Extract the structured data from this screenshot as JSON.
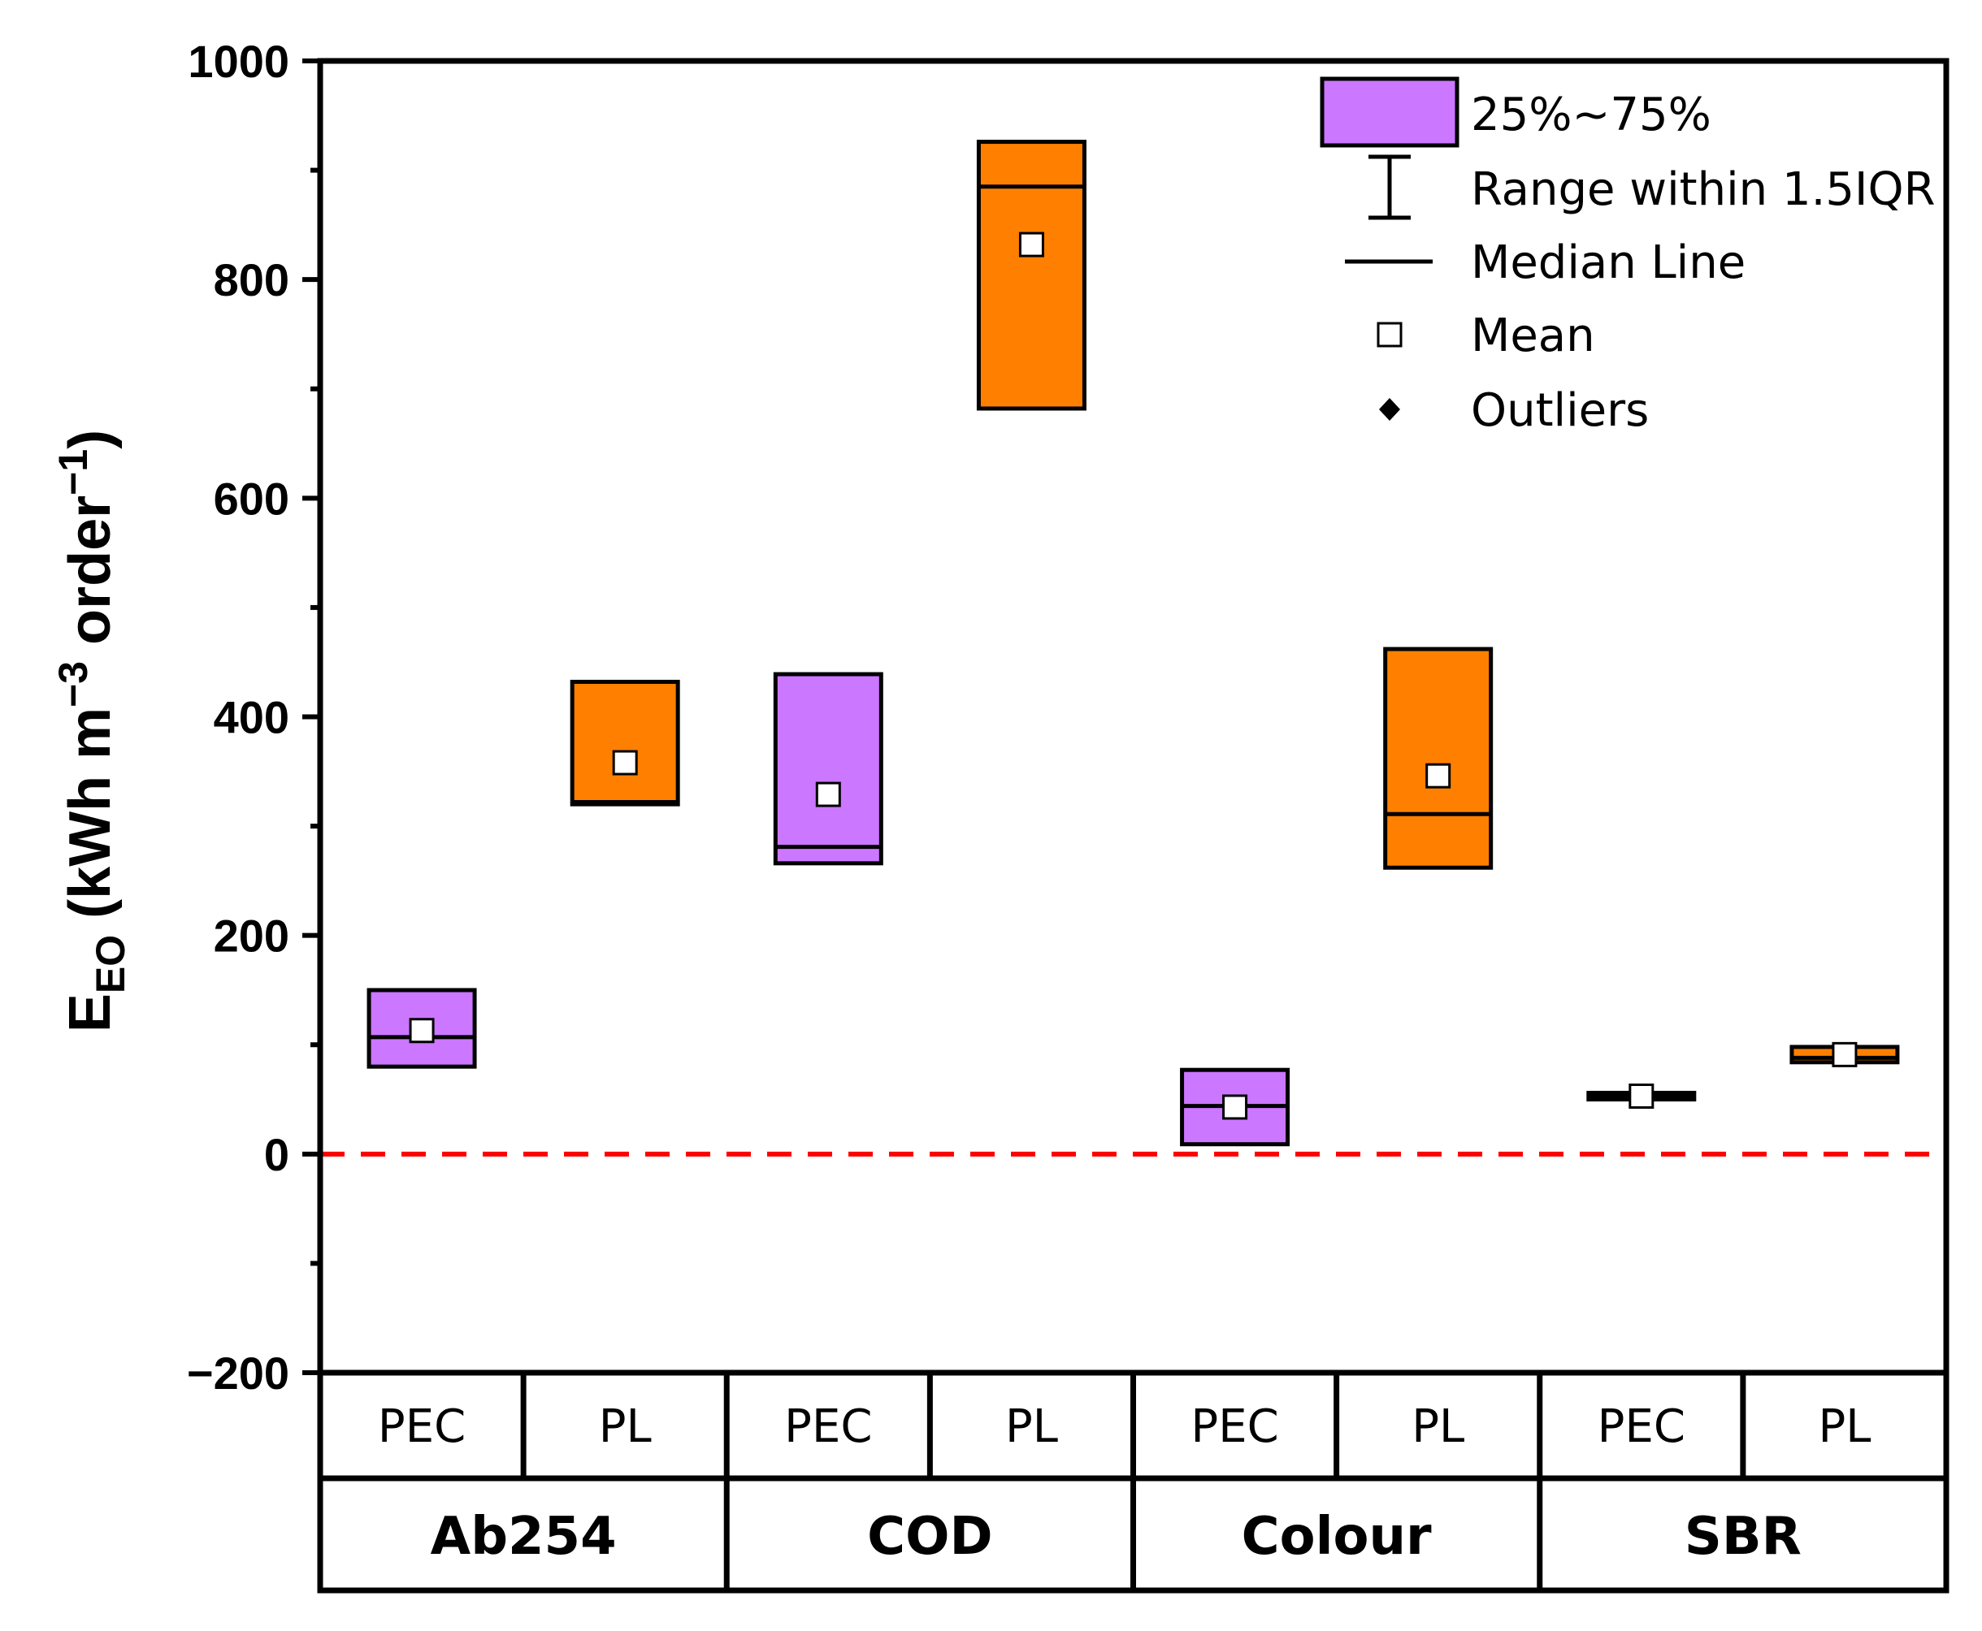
{
  "chart_data": {
    "type": "box",
    "title": "",
    "ylabel": {
      "main": "E",
      "subscript": "EO",
      "units_prefix": " (kWh m",
      "sup1": "−3",
      "units_mid": " order",
      "sup2": "−1",
      "units_suffix": ")"
    },
    "ylim": [
      -200,
      1000
    ],
    "yticks": [
      {
        "value": -200,
        "label": "−200"
      },
      {
        "value": 0,
        "label": "0"
      },
      {
        "value": 200,
        "label": "200"
      },
      {
        "value": 400,
        "label": "400"
      },
      {
        "value": 600,
        "label": "600"
      },
      {
        "value": 800,
        "label": "800"
      },
      {
        "value": 1000,
        "label": "1000"
      }
    ],
    "minor_ticks": [
      -100,
      100,
      300,
      500,
      700,
      900
    ],
    "reference_line": {
      "value": 0,
      "color": "#ff0000",
      "style": "dashed"
    },
    "groups": [
      "Ab254",
      "COD",
      "Colour",
      "SBR"
    ],
    "methods": [
      "PEC",
      "PL"
    ],
    "colors": {
      "PEC": "#cc77ff",
      "PL": "#ff8000"
    },
    "boxes": [
      {
        "group": "Ab254",
        "method": "PEC",
        "q1": 80,
        "median": 107,
        "q3": 150,
        "mean": 113
      },
      {
        "group": "Ab254",
        "method": "PL",
        "q1": 320,
        "median": 322,
        "q3": 432,
        "mean": 358
      },
      {
        "group": "COD",
        "method": "PEC",
        "q1": 266,
        "median": 281,
        "q3": 439,
        "mean": 329
      },
      {
        "group": "COD",
        "method": "PL",
        "q1": 682,
        "median": 885,
        "q3": 926,
        "mean": 832
      },
      {
        "group": "Colour",
        "method": "PEC",
        "q1": 9,
        "median": 44,
        "q3": 77,
        "mean": 43
      },
      {
        "group": "Colour",
        "method": "PL",
        "q1": 262,
        "median": 311,
        "q3": 462,
        "mean": 346
      },
      {
        "group": "SBR",
        "method": "PEC",
        "q1": 50,
        "median": 53,
        "q3": 56,
        "mean": 53
      },
      {
        "group": "SBR",
        "method": "PL",
        "q1": 84,
        "median": 88,
        "q3": 98,
        "mean": 91
      }
    ],
    "legend": {
      "position": "top-right",
      "entries": [
        "25%~75%",
        "Range within 1.5IQR",
        "Median Line",
        "Mean",
        "Outliers"
      ]
    }
  }
}
